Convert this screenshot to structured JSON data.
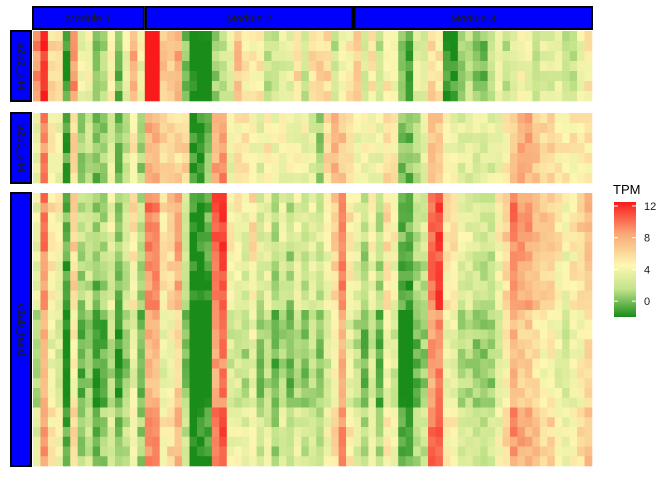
{
  "chart_data": {
    "type": "heatmap",
    "legend": {
      "title": "TPM",
      "breaks": [
        0,
        4,
        8,
        12
      ],
      "range": [
        -2,
        12.5
      ],
      "placement": "right"
    },
    "colors": {
      "low": "#1a8c1a",
      "mid_low": "#c2e38a",
      "mid": "#fdf7b2",
      "mid_high": "#f9a877",
      "high": "#f91b1b",
      "strip_fill": "#0000ff",
      "strip_border": "#000000",
      "background": "#ffffff"
    },
    "column_modules": [
      {
        "label": "Module 1",
        "columns": 15
      },
      {
        "label": "Module 2",
        "columns": 28
      },
      {
        "label": "Module 3",
        "columns": 32
      }
    ],
    "row_groups": [
      {
        "label": "a2b2_alt4",
        "rows": 7
      },
      {
        "label": "a2b1_alt4",
        "rows": 7
      },
      {
        "label": "c1ab_hard",
        "rows": 28
      }
    ],
    "column_profile": [
      3,
      9,
      5,
      4,
      -1,
      6,
      1,
      2,
      0,
      1,
      3,
      0,
      2,
      5,
      1,
      11,
      10,
      5,
      6,
      8,
      2,
      -2,
      -2,
      -1,
      10,
      11,
      4,
      4,
      3,
      5,
      2,
      3,
      1,
      3,
      1,
      3,
      2,
      3,
      2,
      4,
      6,
      9,
      5,
      3,
      1,
      4,
      1,
      5,
      4,
      -1,
      -1,
      1,
      2,
      10,
      11,
      5,
      5,
      3,
      3,
      2,
      2,
      2,
      4,
      6,
      9,
      8,
      8,
      7,
      6,
      6,
      5,
      4,
      5,
      6,
      7
    ],
    "group_column_shift": [
      [
        6,
        3,
        1,
        2,
        0,
        3,
        3,
        2,
        0,
        0,
        2,
        0,
        2,
        3,
        3,
        3,
        5,
        2,
        1,
        0,
        -2,
        0,
        -1,
        -2,
        -9,
        -9,
        -1,
        3,
        2,
        0,
        3,
        -1,
        1,
        0,
        2,
        3,
        0,
        3,
        4,
        2,
        -4,
        -5,
        0,
        3,
        2,
        1,
        1,
        0,
        0,
        2,
        0,
        2,
        1,
        -4,
        -6,
        -6,
        -6,
        -2,
        -1,
        -2,
        -2,
        0,
        0,
        -4,
        -6,
        -4,
        -4,
        -5,
        -3,
        -3,
        -2,
        -2,
        -3,
        -2,
        -2
      ],
      [
        0,
        0,
        0,
        0,
        0,
        0,
        0,
        0,
        0,
        0,
        0,
        0,
        0,
        0,
        0,
        -3,
        -2,
        1,
        0,
        -2,
        4,
        1,
        1,
        1,
        -2,
        -2,
        0,
        1,
        2,
        -1,
        1,
        2,
        3,
        1,
        3,
        1,
        2,
        0,
        -1,
        2,
        2,
        -2,
        0,
        1,
        3,
        0,
        3,
        1,
        1,
        1,
        1,
        0,
        1,
        -3,
        -4,
        -1,
        -1,
        0,
        0,
        1,
        1,
        1,
        0,
        -1,
        -2,
        0,
        0,
        0,
        0,
        0,
        0,
        1,
        0,
        -1,
        -2
      ],
      [
        0,
        0,
        0,
        0,
        0,
        0,
        0,
        0,
        0,
        0,
        0,
        0,
        0,
        0,
        0,
        -2,
        -1,
        0,
        0,
        0,
        0,
        0,
        0,
        0,
        0,
        0,
        0,
        0,
        0,
        0,
        0,
        0,
        0,
        0,
        0,
        0,
        0,
        0,
        0,
        0,
        0,
        0,
        0,
        0,
        0,
        0,
        0,
        0,
        0,
        0,
        0,
        0,
        0,
        0,
        0,
        0,
        0,
        0,
        0,
        0,
        0,
        0,
        0,
        0,
        0,
        0,
        0,
        0,
        0,
        0,
        0,
        0,
        0,
        0,
        0
      ]
    ]
  }
}
